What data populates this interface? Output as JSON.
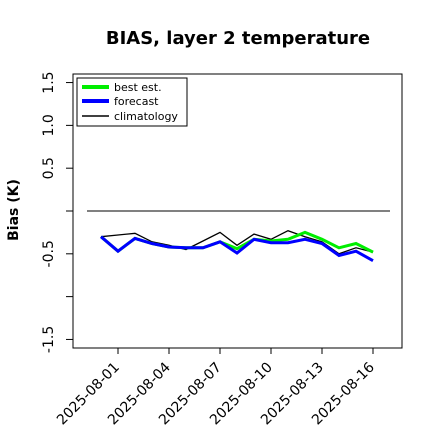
{
  "chart_data": {
    "type": "line",
    "title": "BIAS, layer 2 temperature",
    "ylabel": "Bias (K)",
    "xlabel": "",
    "ylim": [
      -1.6,
      1.6
    ],
    "yticks": [
      "-1.5",
      "-0.5",
      "0.5",
      "1.0",
      "1.5"
    ],
    "yticks_values": [
      -1.5,
      -0.5,
      0.5,
      1.0,
      1.5
    ],
    "reference_line": 0,
    "x": [
      "2025-07-31",
      "2025-08-01",
      "2025-08-02",
      "2025-08-03",
      "2025-08-04",
      "2025-08-05",
      "2025-08-06",
      "2025-08-07",
      "2025-08-08",
      "2025-08-09",
      "2025-08-10",
      "2025-08-11",
      "2025-08-12",
      "2025-08-13",
      "2025-08-14",
      "2025-08-15",
      "2025-08-16"
    ],
    "xticks": [
      "2025-08-01",
      "2025-08-04",
      "2025-08-07",
      "2025-08-10",
      "2025-08-13",
      "2025-08-16"
    ],
    "xtick_colors": [
      "#000000",
      "#000000",
      "#228B22",
      "#000000",
      "#000000",
      "#000000"
    ],
    "series": [
      {
        "name": "best est.",
        "color": "#00ee00",
        "values": [
          -0.3,
          -0.47,
          -0.32,
          -0.38,
          -0.42,
          -0.43,
          -0.43,
          -0.36,
          -0.44,
          -0.33,
          -0.35,
          -0.33,
          -0.25,
          -0.33,
          -0.43,
          -0.38,
          -0.48
        ]
      },
      {
        "name": "forecast",
        "color": "#0000ff",
        "values": [
          -0.3,
          -0.47,
          -0.32,
          -0.38,
          -0.42,
          -0.43,
          -0.43,
          -0.36,
          -0.49,
          -0.33,
          -0.37,
          -0.37,
          -0.33,
          -0.38,
          -0.52,
          -0.47,
          -0.58
        ]
      },
      {
        "name": "climatology",
        "color": "#000000",
        "values": [
          -0.3,
          -0.28,
          -0.26,
          -0.36,
          -0.4,
          -0.45,
          -0.35,
          -0.25,
          -0.4,
          -0.27,
          -0.33,
          -0.23,
          -0.3,
          -0.36,
          -0.5,
          -0.43,
          -0.48
        ]
      }
    ],
    "legend": "top-left",
    "grid": false
  }
}
